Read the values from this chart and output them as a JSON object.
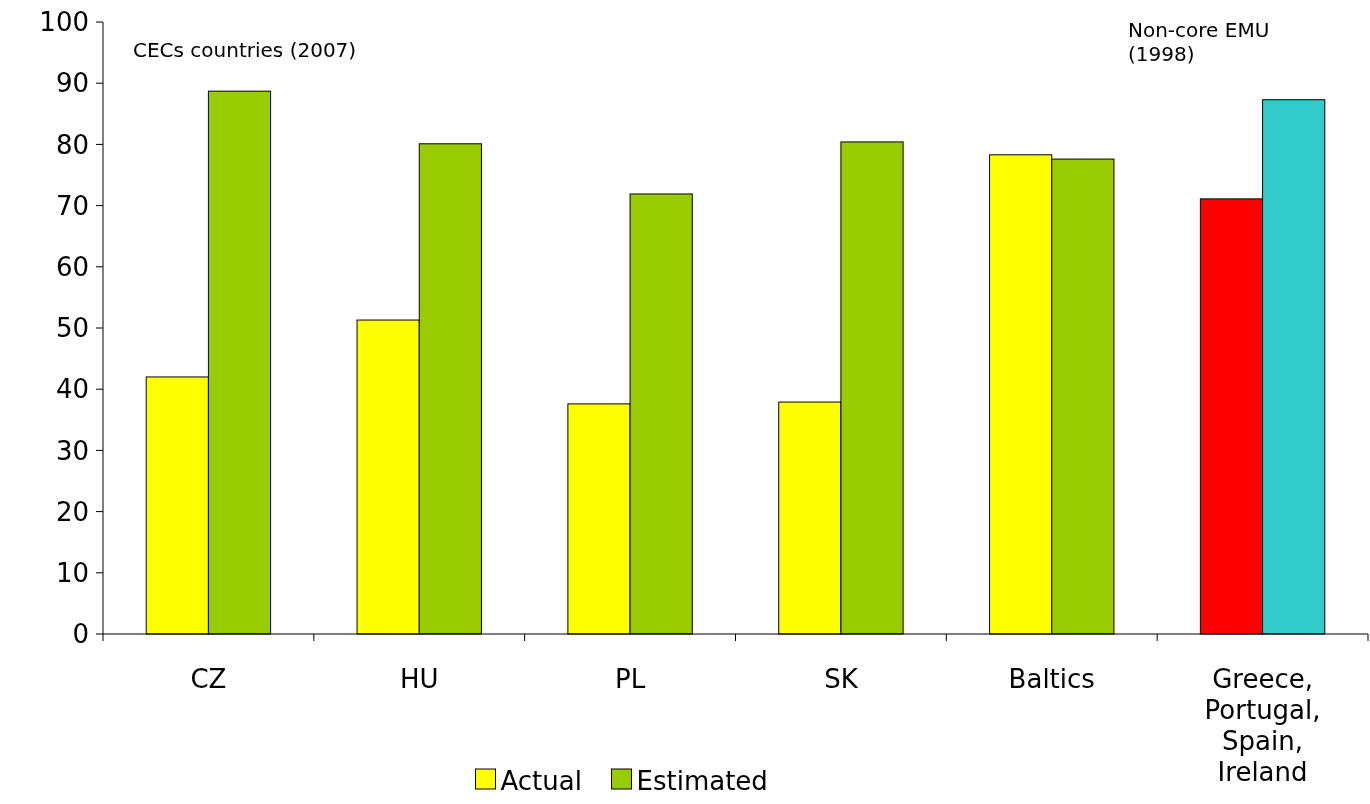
{
  "chart_data": {
    "type": "bar",
    "categories": [
      "CZ",
      "HU",
      "PL",
      "SK",
      "Baltics",
      "Greece, Portugal, Spain, Ireland"
    ],
    "series": [
      {
        "name": "Actual",
        "color": "#ffff00",
        "colors": [
          "#ffff00",
          "#ffff00",
          "#ffff00",
          "#ffff00",
          "#ffff00",
          "#ff0000"
        ],
        "values": [
          42.0,
          51.3,
          37.6,
          37.9,
          78.3,
          71.1
        ]
      },
      {
        "name": "Estimated",
        "color": "#99cc00",
        "colors": [
          "#99cc00",
          "#99cc00",
          "#99cc00",
          "#99cc00",
          "#99cc00",
          "#33cccc"
        ],
        "values": [
          88.7,
          80.1,
          71.9,
          80.4,
          77.6,
          87.3
        ]
      }
    ],
    "ylim": [
      0,
      100
    ],
    "yticks": [
      0,
      10,
      20,
      30,
      40,
      50,
      60,
      70,
      80,
      90,
      100
    ],
    "grid": false,
    "legend": "bottom",
    "annotations": [
      "CECs countries (2007)",
      "Non-core EMU (1998)"
    ]
  }
}
